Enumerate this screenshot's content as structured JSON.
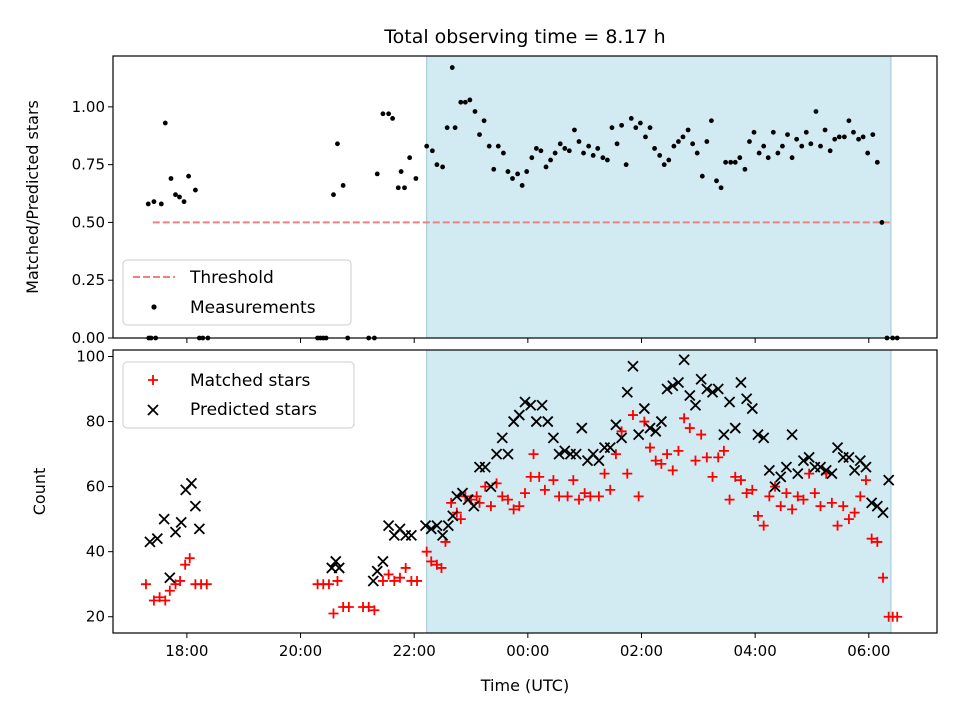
{
  "figure": {
    "title": "Total observing time = 8.17 h",
    "shaded_region_color": "#add8e6",
    "shaded_region": {
      "x0": 22.22,
      "x1": 30.39
    }
  },
  "chart_data": [
    {
      "type": "scatter",
      "panel": "top",
      "title": "Total observing time = 8.17 h",
      "xlabel": "",
      "ylabel": "Matched/Predicted stars",
      "xlim": [
        16.7,
        31.2
      ],
      "ylim": [
        0.0,
        1.22
      ],
      "yticks": [
        0.0,
        0.25,
        0.5,
        0.75,
        1.0
      ],
      "ytick_labels": [
        "0.00",
        "0.25",
        "0.50",
        "0.75",
        "1.00"
      ],
      "xticks": [
        18,
        20,
        22,
        24,
        26,
        28,
        30
      ],
      "grid": false,
      "legend": {
        "placement": "lower-left",
        "entries": [
          "Threshold",
          "Measurements"
        ]
      },
      "threshold": {
        "name": "Threshold",
        "y": 0.5,
        "x_start": 17.4,
        "x_end": 30.42,
        "color": "#f08080",
        "style": "dashed"
      },
      "series": [
        {
          "name": "Measurements",
          "color": "#000000",
          "x": [
            17.32,
            17.37,
            17.42,
            17.55,
            17.62,
            17.72,
            17.8,
            17.87,
            17.95,
            18.03,
            18.15,
            18.22,
            17.33,
            17.45,
            18.28,
            18.37,
            20.3,
            20.35,
            20.4,
            20.45,
            20.58,
            20.65,
            20.75,
            20.83,
            21.2,
            21.3,
            21.35,
            21.45,
            21.55,
            21.62,
            21.72,
            21.77,
            21.83,
            21.92,
            22.03,
            22.22,
            22.32,
            22.4,
            22.5,
            22.58,
            22.67,
            22.72,
            22.82,
            22.9,
            22.98,
            23.07,
            23.15,
            23.23,
            23.32,
            23.4,
            23.48,
            23.57,
            23.65,
            23.73,
            23.82,
            23.9,
            23.98,
            24.07,
            24.15,
            24.23,
            24.32,
            24.4,
            24.48,
            24.57,
            24.65,
            24.73,
            24.82,
            24.9,
            24.98,
            25.07,
            25.15,
            25.23,
            25.32,
            25.4,
            25.48,
            25.57,
            25.65,
            25.73,
            25.82,
            25.9,
            25.98,
            26.07,
            26.15,
            26.23,
            26.32,
            26.4,
            26.48,
            26.57,
            26.65,
            26.73,
            26.82,
            26.9,
            26.98,
            27.07,
            27.15,
            27.23,
            27.32,
            27.4,
            27.48,
            27.57,
            27.65,
            27.73,
            27.82,
            27.9,
            27.98,
            28.07,
            28.15,
            28.23,
            28.32,
            28.4,
            28.48,
            28.57,
            28.65,
            28.73,
            28.82,
            28.9,
            28.98,
            29.07,
            29.15,
            29.23,
            29.32,
            29.4,
            29.48,
            29.57,
            29.65,
            29.73,
            29.82,
            29.9,
            29.98,
            30.07,
            30.15,
            30.23,
            30.32,
            30.42,
            30.5
          ],
          "y": [
            0.58,
            0.0,
            0.59,
            0.58,
            0.93,
            0.69,
            0.62,
            0.61,
            0.59,
            0.7,
            0.64,
            0.0,
            0.0,
            0.0,
            0.0,
            0.0,
            0.0,
            0.0,
            0.0,
            0.0,
            0.62,
            0.84,
            0.66,
            0.0,
            0.0,
            0.0,
            0.71,
            0.97,
            0.97,
            0.95,
            0.65,
            0.72,
            0.65,
            0.78,
            0.69,
            0.83,
            0.81,
            0.75,
            0.74,
            0.91,
            1.17,
            0.91,
            1.02,
            1.02,
            1.03,
            0.98,
            0.88,
            0.94,
            0.83,
            0.73,
            0.83,
            0.8,
            0.72,
            0.69,
            0.71,
            0.66,
            0.72,
            0.78,
            0.82,
            0.81,
            0.74,
            0.77,
            0.8,
            0.84,
            0.82,
            0.81,
            0.9,
            0.85,
            0.8,
            0.83,
            0.79,
            0.82,
            0.78,
            0.77,
            0.91,
            0.84,
            0.92,
            0.75,
            0.95,
            0.91,
            0.93,
            0.87,
            0.91,
            0.82,
            0.79,
            0.75,
            0.77,
            0.83,
            0.85,
            0.87,
            0.9,
            0.84,
            0.8,
            0.7,
            0.85,
            0.94,
            0.68,
            0.65,
            0.76,
            0.76,
            0.76,
            0.78,
            0.73,
            0.85,
            0.89,
            0.8,
            0.83,
            0.78,
            0.89,
            0.8,
            0.83,
            0.88,
            0.78,
            0.86,
            0.83,
            0.89,
            0.84,
            0.98,
            0.83,
            0.9,
            0.81,
            0.86,
            0.87,
            0.87,
            0.94,
            0.89,
            0.86,
            0.87,
            0.8,
            0.88,
            0.76,
            0.5,
            0.0,
            0.0,
            0.0
          ]
        }
      ]
    },
    {
      "type": "scatter",
      "panel": "bottom",
      "xlabel": "Time (UTC)",
      "ylabel": "Count",
      "xlim": [
        16.7,
        31.2
      ],
      "ylim": [
        15,
        102
      ],
      "yticks": [
        20,
        40,
        60,
        80,
        100
      ],
      "ytick_labels": [
        "20",
        "40",
        "60",
        "80",
        "100"
      ],
      "xticks": [
        18,
        20,
        22,
        24,
        26,
        28,
        30
      ],
      "xtick_labels": [
        "18:00",
        "20:00",
        "22:00",
        "00:00",
        "02:00",
        "04:00",
        "06:00"
      ],
      "grid": false,
      "legend": {
        "placement": "top-left",
        "entries": [
          "Matched stars",
          "Predicted stars"
        ]
      },
      "series": [
        {
          "name": "Matched stars",
          "color": "#ff0000",
          "marker": "plus",
          "x": [
            17.28,
            17.42,
            17.52,
            17.62,
            17.7,
            17.8,
            17.88,
            17.97,
            18.05,
            18.15,
            18.25,
            18.35,
            20.3,
            20.4,
            20.5,
            20.58,
            20.65,
            20.75,
            20.85,
            21.1,
            21.2,
            21.3,
            21.45,
            21.55,
            21.65,
            21.75,
            21.85,
            21.95,
            22.05,
            22.22,
            22.3,
            22.4,
            22.48,
            22.55,
            22.65,
            22.75,
            22.82,
            22.9,
            23.0,
            23.1,
            23.15,
            23.25,
            23.35,
            23.45,
            23.55,
            23.65,
            23.75,
            23.85,
            23.95,
            24.05,
            24.1,
            24.2,
            24.3,
            24.45,
            24.55,
            24.7,
            24.8,
            24.9,
            25.0,
            25.1,
            25.25,
            25.35,
            25.45,
            25.55,
            25.65,
            25.75,
            25.85,
            25.95,
            26.05,
            26.15,
            26.25,
            26.35,
            26.45,
            26.55,
            26.65,
            26.75,
            26.85,
            26.95,
            27.05,
            27.15,
            27.25,
            27.35,
            27.45,
            27.55,
            27.65,
            27.75,
            27.85,
            27.95,
            28.05,
            28.15,
            28.25,
            28.35,
            28.45,
            28.55,
            28.65,
            28.75,
            28.85,
            28.95,
            29.05,
            29.15,
            29.25,
            29.35,
            29.45,
            29.55,
            29.65,
            29.75,
            29.85,
            29.95,
            30.05,
            30.15,
            30.25,
            30.35,
            30.42,
            30.5
          ],
          "y": [
            30,
            25,
            26,
            25,
            28,
            30,
            31,
            36,
            38,
            30,
            30,
            30,
            30,
            30,
            30,
            21,
            31,
            23,
            23,
            23,
            23,
            22,
            31,
            33,
            31,
            32,
            35,
            31,
            31,
            40,
            37,
            36,
            35,
            43,
            55,
            52,
            50,
            57,
            56,
            57,
            55,
            60,
            54,
            61,
            57,
            56,
            53,
            54,
            58,
            63,
            70,
            63,
            59,
            62,
            57,
            57,
            62,
            56,
            58,
            57,
            57,
            64,
            59,
            70,
            77,
            64,
            82,
            57,
            80,
            72,
            68,
            67,
            70,
            65,
            71,
            81,
            78,
            68,
            76,
            69,
            63,
            69,
            71,
            56,
            63,
            62,
            58,
            59,
            51,
            48,
            57,
            60,
            54,
            58,
            53,
            57,
            56,
            64,
            58,
            54,
            64,
            55,
            48,
            54,
            50,
            52,
            57,
            62,
            44,
            43,
            32,
            20,
            20,
            20
          ]
        },
        {
          "name": "Predicted stars",
          "color": "#000000",
          "marker": "x",
          "x": [
            17.35,
            17.48,
            17.6,
            17.7,
            17.8,
            17.9,
            17.98,
            18.08,
            18.15,
            18.22,
            20.55,
            20.62,
            20.68,
            21.28,
            21.35,
            21.45,
            21.55,
            21.65,
            21.75,
            21.85,
            21.95,
            22.2,
            22.3,
            22.4,
            22.5,
            22.6,
            22.68,
            22.75,
            22.85,
            22.95,
            23.05,
            23.15,
            23.25,
            23.35,
            23.45,
            23.55,
            23.65,
            23.75,
            23.85,
            23.95,
            24.05,
            24.15,
            24.25,
            24.35,
            24.45,
            24.55,
            24.65,
            24.75,
            24.85,
            24.95,
            25.05,
            25.15,
            25.25,
            25.35,
            25.45,
            25.55,
            25.65,
            25.75,
            25.85,
            25.95,
            26.05,
            26.15,
            26.25,
            26.35,
            26.45,
            26.55,
            26.65,
            26.75,
            26.85,
            26.95,
            27.05,
            27.15,
            27.25,
            27.35,
            27.45,
            27.55,
            27.65,
            27.75,
            27.85,
            27.95,
            28.05,
            28.15,
            28.25,
            28.35,
            28.45,
            28.55,
            28.65,
            28.75,
            28.85,
            28.95,
            29.05,
            29.15,
            29.25,
            29.35,
            29.45,
            29.55,
            29.65,
            29.75,
            29.85,
            29.95,
            30.05,
            30.15,
            30.25,
            30.35
          ],
          "y": [
            43,
            44,
            50,
            32,
            46,
            49,
            59,
            61,
            54,
            47,
            35,
            37,
            35,
            31,
            34,
            37,
            48,
            45,
            47,
            45,
            45,
            48,
            47,
            48,
            45,
            48,
            51,
            57,
            58,
            56,
            54,
            66,
            66,
            60,
            70,
            75,
            70,
            80,
            82,
            86,
            85,
            80,
            85,
            80,
            75,
            70,
            71,
            70,
            70,
            78,
            68,
            70,
            68,
            72,
            72,
            79,
            75,
            89,
            97,
            76,
            84,
            78,
            77,
            80,
            90,
            91,
            92,
            99,
            88,
            85,
            93,
            90,
            89,
            90,
            76,
            86,
            78,
            92,
            87,
            84,
            76,
            75,
            65,
            60,
            63,
            66,
            76,
            64,
            68,
            69,
            66,
            66,
            65,
            64,
            72,
            69,
            69,
            65,
            68,
            66,
            55,
            54,
            52,
            62
          ]
        }
      ]
    }
  ]
}
